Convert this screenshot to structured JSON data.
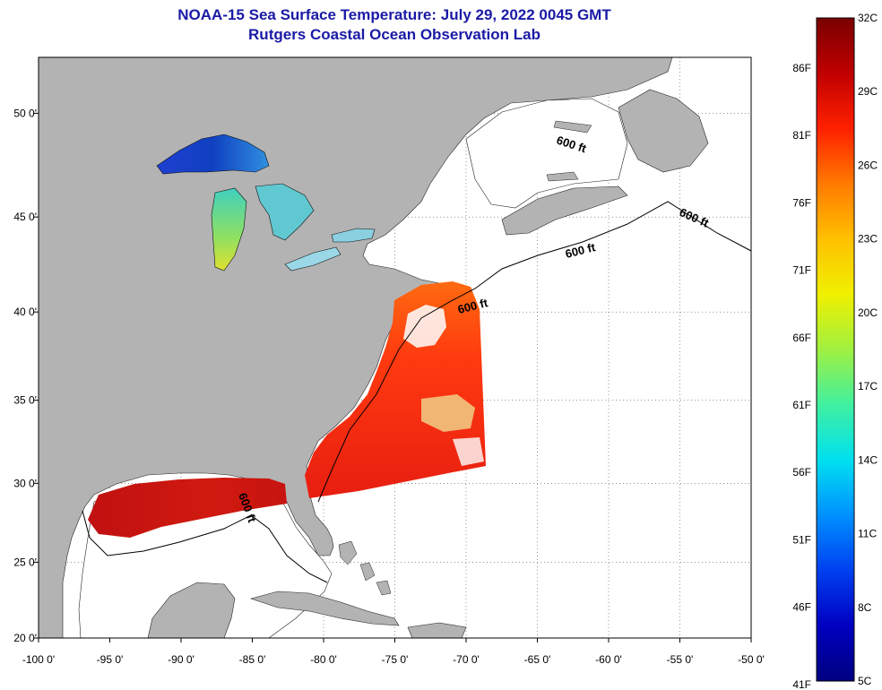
{
  "title": {
    "line1": "NOAA-15 Sea Surface Temperature:  July 29, 2022 0045 GMT",
    "line2": "Rutgers Coastal Ocean Observation Lab"
  },
  "axes": {
    "lon_ticks": [
      "-100 0'",
      "-95 0'",
      "-90 0'",
      "-85 0'",
      "-80 0'",
      "-75 0'",
      "-70 0'",
      "-65 0'",
      "-60 0'",
      "-55 0'",
      "-50 0'"
    ],
    "lat_ticks": [
      "50 0'",
      "45 0'",
      "40 0'",
      "35 0'",
      "30 0'",
      "25 0'",
      "20 0'"
    ],
    "lon_range": [
      -100,
      -50
    ],
    "lat_range": [
      20,
      52.5
    ]
  },
  "contour_labels": [
    "600 ft",
    "600 ft",
    "600 ft",
    "600 ft",
    "600 ft"
  ],
  "colorbar": {
    "celsius_labels": [
      "32C",
      "29C",
      "26C",
      "23C",
      "20C",
      "17C",
      "14C",
      "11C",
      "8C",
      "5C"
    ],
    "fahrenheit_labels": [
      "86F",
      "81F",
      "76F",
      "71F",
      "66F",
      "61F",
      "56F",
      "51F",
      "46F",
      "41F"
    ],
    "colors": [
      "#7a0000",
      "#c00000",
      "#ff2000",
      "#ff7a00",
      "#ffc000",
      "#f0f000",
      "#a0f040",
      "#40f0a0",
      "#00e0f0",
      "#0090ff",
      "#0040f0",
      "#0000c0",
      "#000080"
    ]
  },
  "colors": {
    "land": "#b3b3b3",
    "ocean_nodata": "#ffffff",
    "title": "#1a1aa6"
  }
}
